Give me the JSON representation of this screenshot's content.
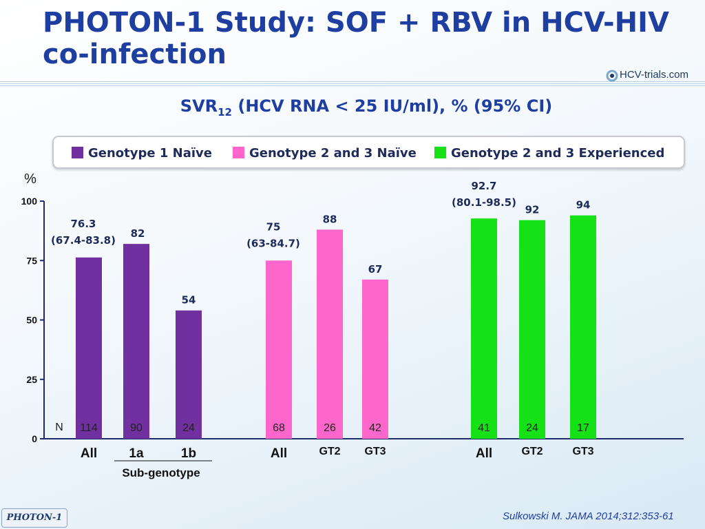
{
  "page": {
    "title": "PHOTON-1 Study: SOF + RBV in HCV-HIV co-infection",
    "logo_text": "HCV-trials.com",
    "subtitle_main": "SVR",
    "subtitle_sub": "12",
    "subtitle_rest": " (HCV RNA < 25 IU/ml), % (95% CI)",
    "footer_tag": "PHOTON-1",
    "citation": "Sulkowski M. JAMA 2014;312:353-61"
  },
  "colors": {
    "title": "#1f3fa0",
    "purple": "#7030a0",
    "pink": "#ff66cc",
    "green": "#16e016",
    "label": "#1e2a5a",
    "axis": "#1f2a6a"
  },
  "chart_data": {
    "type": "bar",
    "title": "SVR12 (HCV RNA < 25 IU/ml), % (95% CI)",
    "ylabel": "%",
    "ylim": [
      0,
      100
    ],
    "yticks": [
      0,
      25,
      50,
      75,
      100
    ],
    "n_label": "N",
    "subgroup_label": "Sub-genotype",
    "legend": [
      {
        "name": "Genotype 1 Naïve",
        "color": "#7030a0"
      },
      {
        "name": "Genotype 2 and 3 Naïve",
        "color": "#ff66cc"
      },
      {
        "name": "Genotype 2 and 3 Experienced",
        "color": "#16e016"
      }
    ],
    "series": [
      {
        "name": "Genotype 1 Naïve",
        "color": "#7030a0",
        "bars": [
          {
            "category": "All",
            "value": 76.3,
            "ci": "(67.4-83.8)",
            "n": "114"
          },
          {
            "category": "1a",
            "value": 82,
            "ci": "",
            "n": "90"
          },
          {
            "category": "1b",
            "value": 54,
            "ci": "",
            "n": "24"
          }
        ]
      },
      {
        "name": "Genotype 2 and 3 Naïve",
        "color": "#ff66cc",
        "bars": [
          {
            "category": "All",
            "value": 75,
            "ci": "(63-84.7)",
            "n": "68"
          },
          {
            "category": "GT2",
            "value": 88,
            "ci": "",
            "n": "26"
          },
          {
            "category": "GT3",
            "value": 67,
            "ci": "",
            "n": "42"
          }
        ]
      },
      {
        "name": "Genotype 2 and 3 Experienced",
        "color": "#16e016",
        "bars": [
          {
            "category": "All",
            "value": 92.7,
            "ci": "(80.1-98.5)",
            "n": "41"
          },
          {
            "category": "GT2",
            "value": 92,
            "ci": "",
            "n": "24"
          },
          {
            "category": "GT3",
            "value": 94,
            "ci": "",
            "n": "17"
          }
        ]
      }
    ]
  }
}
